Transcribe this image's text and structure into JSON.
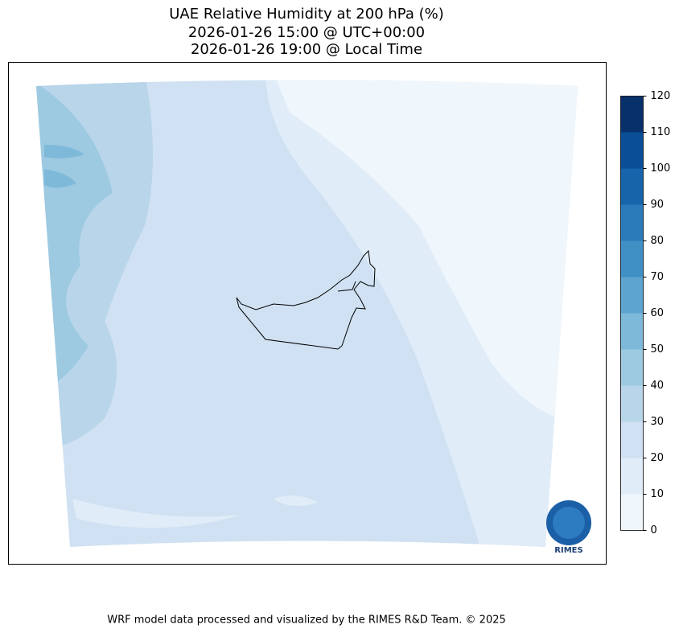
{
  "title": [
    "UAE Relative Humidity at 200 hPa (%)",
    "2026-01-26 15:00 @ UTC+00:00",
    "2026-01-26 19:00 @ Local Time"
  ],
  "colorbar": {
    "ticks": [
      0,
      10,
      20,
      30,
      40,
      50,
      60,
      70,
      80,
      90,
      100,
      110,
      120
    ],
    "colors": [
      "#eff6fc",
      "#e0ecf7",
      "#cfe1f2",
      "#b8d5ea",
      "#9dcae1",
      "#7fb9da",
      "#5da4d0",
      "#4090c5",
      "#2b7bba",
      "#1764ab",
      "#094e97",
      "#08306b"
    ]
  },
  "logo": "RIMES",
  "footer": "WRF model data processed and visualized by the RIMES R&D Team. © 2025"
}
